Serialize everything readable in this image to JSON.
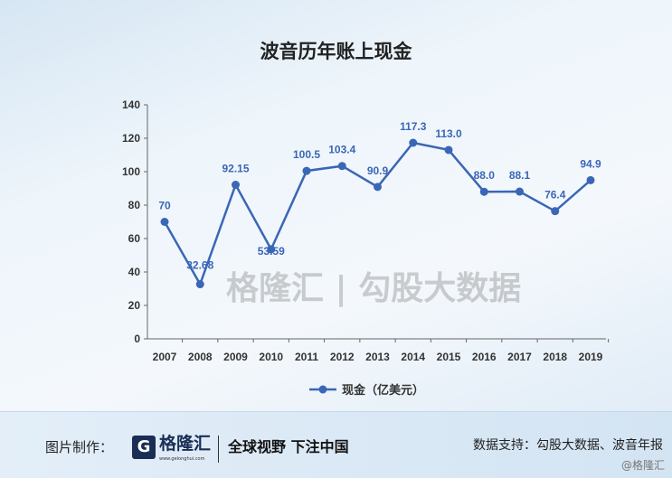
{
  "chart_data": {
    "type": "line",
    "title": "波音历年账上现金",
    "categories": [
      "2007",
      "2008",
      "2009",
      "2010",
      "2011",
      "2012",
      "2013",
      "2014",
      "2015",
      "2016",
      "2017",
      "2018",
      "2019"
    ],
    "series": [
      {
        "name": "现金（亿美元）",
        "color": "#3a66b6",
        "values": [
          70,
          32.68,
          92.15,
          53.59,
          100.5,
          103.4,
          90.9,
          117.3,
          113.0,
          88.0,
          88.1,
          76.4,
          94.9
        ],
        "labels": [
          "70",
          "32.68",
          "92.15",
          "53.59",
          "100.5",
          "103.4",
          "90.9",
          "117.3",
          "113.0",
          "88.0",
          "88.1",
          "76.4",
          "94.9"
        ]
      }
    ],
    "ylim": [
      0,
      140
    ],
    "yticks": [
      0,
      20,
      40,
      60,
      80,
      100,
      120,
      140
    ],
    "grid": false,
    "legend": "bottom"
  },
  "watermark": "格隆汇 | 勾股大数据",
  "footer": {
    "maker_label": "图片制作：",
    "logo_text": "格隆汇",
    "logo_url": "www.gelonghui.com",
    "slogan": "全球视野 下注中国",
    "source": "数据支持：勾股大数据、波音年报",
    "credit": "@格隆汇"
  }
}
